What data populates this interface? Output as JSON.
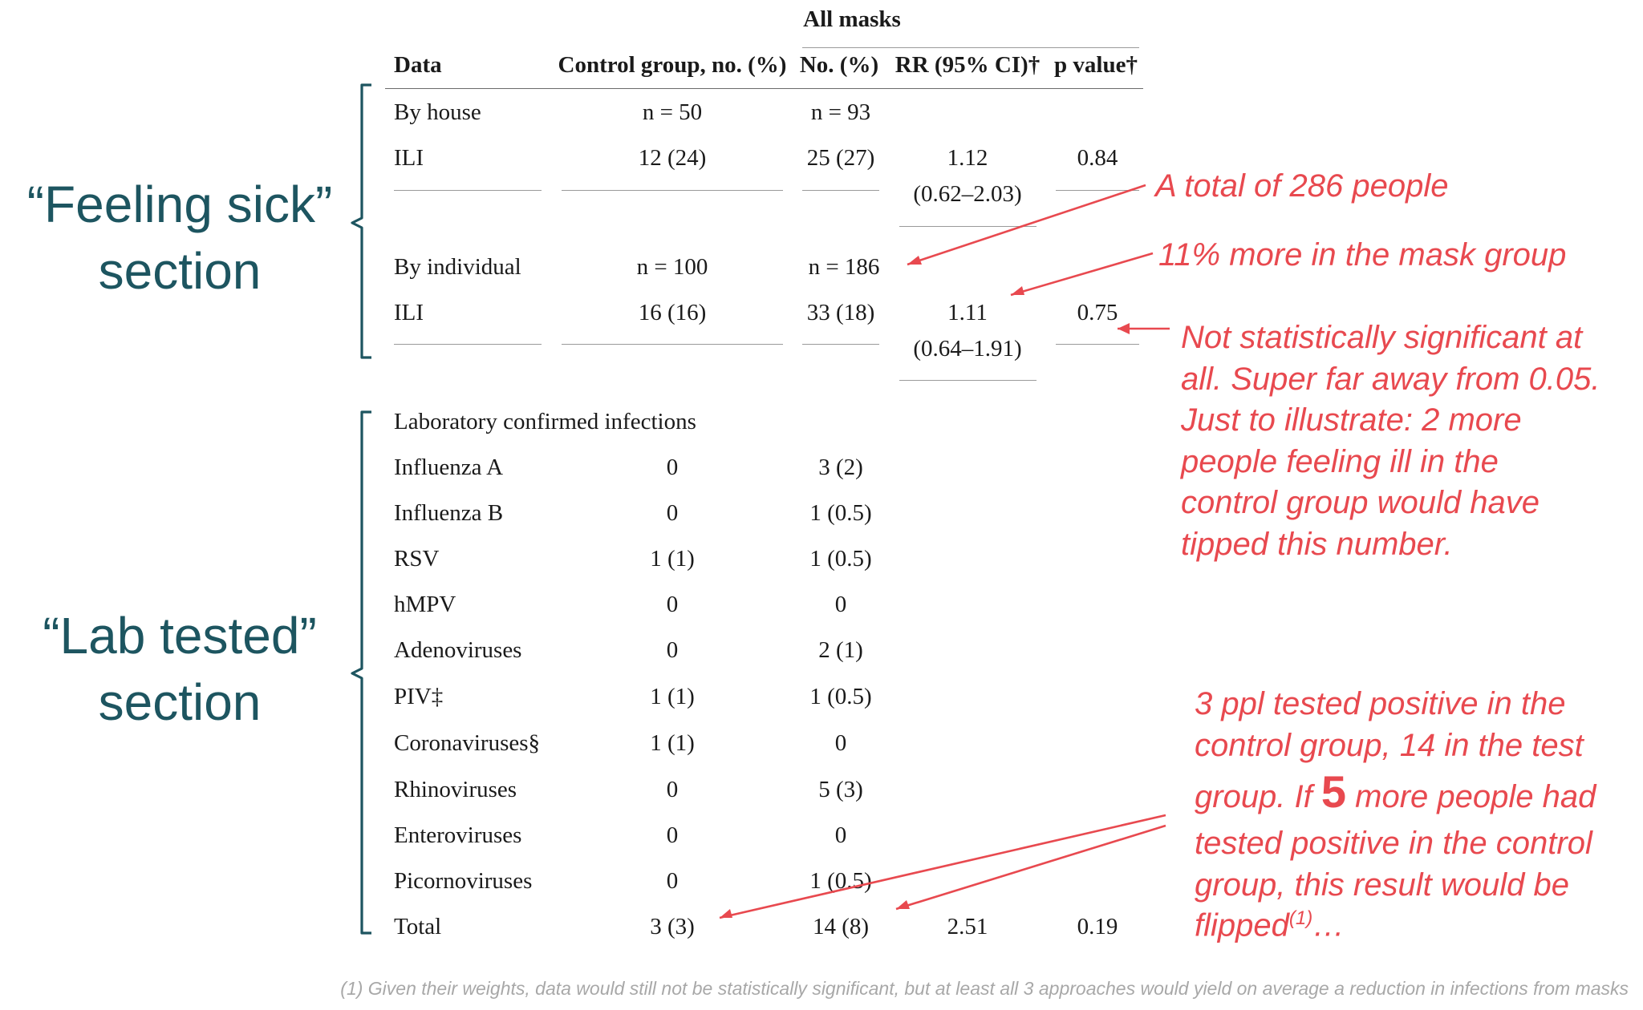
{
  "table": {
    "group_header": "All masks",
    "columns": [
      "Data",
      "Control group, no. (%)",
      "No. (%)",
      "RR (95% CI)†",
      "p value†"
    ],
    "by_house": {
      "label": "By house",
      "control_n": "n = 50",
      "mask_n": "n = 93"
    },
    "house_ili": {
      "label": "ILI",
      "control": "12 (24)",
      "mask": "25 (27)",
      "rr": "1.12",
      "ci": "(0.62–2.03)",
      "p": "0.84"
    },
    "by_individual": {
      "label": "By individual",
      "control_n": "n = 100",
      "mask_n": "n = 186"
    },
    "indiv_ili": {
      "label": "ILI",
      "control": "16 (16)",
      "mask": "33 (18)",
      "rr": "1.11",
      "ci": "(0.64–1.91)",
      "p": "0.75"
    },
    "lab_header": "Laboratory confirmed infections",
    "lab_rows": [
      {
        "label": "Influenza A",
        "control": "0",
        "mask": "3 (2)"
      },
      {
        "label": "Influenza B",
        "control": "0",
        "mask": "1 (0.5)"
      },
      {
        "label": "RSV",
        "control": "1 (1)",
        "mask": "1 (0.5)"
      },
      {
        "label": "hMPV",
        "control": "0",
        "mask": "0"
      },
      {
        "label": "Adenoviruses",
        "control": "0",
        "mask": "2 (1)"
      },
      {
        "label": "PIV‡",
        "control": "1 (1)",
        "mask": "1 (0.5)"
      },
      {
        "label": "Coronaviruses§",
        "control": "1 (1)",
        "mask": "0"
      },
      {
        "label": "Rhinoviruses",
        "control": "0",
        "mask": "5 (3)"
      },
      {
        "label": "Enteroviruses",
        "control": "0",
        "mask": "0"
      },
      {
        "label": "Picornoviruses",
        "control": "0",
        "mask": "1 (0.5)"
      }
    ],
    "total": {
      "label": "Total",
      "control": "3 (3)",
      "mask": "14 (8)",
      "rr": "2.51",
      "p": "0.19"
    }
  },
  "sections": {
    "feeling_sick": [
      "“Feeling sick”",
      "section"
    ],
    "lab_tested": [
      "“Lab tested”",
      "section"
    ]
  },
  "annotations": {
    "total_people": "A total of 286 people",
    "more_mask": "11% more in the mask group",
    "not_significant": [
      "Not statistically significant at",
      "all. Super far away from 0.05.",
      "Just to illustrate: 2 more",
      "people feeling ill in the",
      "control group would have",
      "tipped this number."
    ],
    "lab_note_1": "3 ppl tested positive in the",
    "lab_note_2": "control group, 14 in the test",
    "lab_note_3_pre": "group. If ",
    "lab_note_3_num": "5",
    "lab_note_3_post": " more people had",
    "lab_note_4": "tested positive in the control",
    "lab_note_5": "group, this result would be",
    "lab_note_6_pre": "flipped",
    "lab_note_6_sup": "(1)",
    "lab_note_6_post": "…"
  },
  "footnote": "(1) Given their weights, data would still not be statistically significant, but at least all 3 approaches would yield on average a reduction in infections from masks",
  "colors": {
    "section_text": "#1d5560",
    "annotation": "#e8494f",
    "footnote": "#a8a8a8"
  }
}
